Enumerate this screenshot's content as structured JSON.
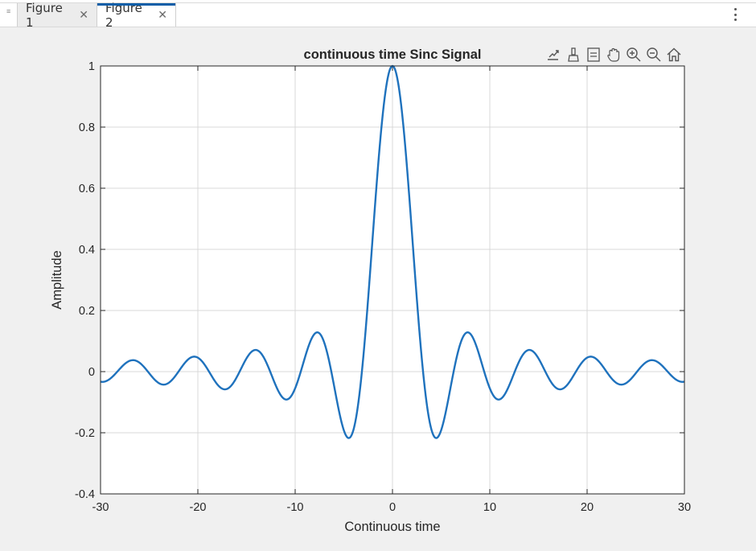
{
  "tabs": [
    {
      "label": "Figure 1",
      "active": false
    },
    {
      "label": "Figure 2",
      "active": true
    }
  ],
  "toolbar": {
    "icons": [
      "export-icon",
      "brush-icon",
      "datatip-icon",
      "pan-icon",
      "zoom-in-icon",
      "zoom-out-icon",
      "home-icon"
    ]
  },
  "colors": {
    "line": "#1f72bd",
    "tab_accent": "#0e5ea8",
    "grid": "#d9d9d9"
  },
  "chart_data": {
    "type": "line",
    "title": "continuous time Sinc Signal",
    "xlabel": "Continuous time",
    "ylabel": "Amplitude",
    "xlim": [
      -30,
      30
    ],
    "ylim": [
      -0.4,
      1
    ],
    "xticks": [
      -30,
      -20,
      -10,
      0,
      10,
      20,
      30
    ],
    "yticks": [
      -0.4,
      -0.2,
      0,
      0.2,
      0.4,
      0.6,
      0.8,
      1
    ],
    "ytick_labels": [
      "-0.4",
      "-0.2",
      "0",
      "0.2",
      "0.4",
      "0.6",
      "0.8",
      "1"
    ],
    "xtick_labels": [
      "-30",
      "-20",
      "-10",
      "0",
      "10",
      "20",
      "30"
    ],
    "grid": true,
    "series": [
      {
        "function": "sin(t)/t",
        "x": [
          -30,
          -28.7,
          -26.7,
          -23.6,
          -20.4,
          -17.2,
          -14.1,
          -11.0,
          -7.7,
          -4.5,
          0,
          4.5,
          7.7,
          11.0,
          14.1,
          17.2,
          20.4,
          23.6,
          26.7,
          28.7,
          30
        ],
        "y": [
          -0.033,
          -0.01,
          0.037,
          -0.043,
          0.049,
          -0.058,
          0.071,
          -0.091,
          0.128,
          -0.217,
          1,
          -0.217,
          0.128,
          -0.091,
          0.071,
          -0.058,
          0.049,
          -0.043,
          0.037,
          -0.01,
          -0.033
        ]
      }
    ]
  }
}
